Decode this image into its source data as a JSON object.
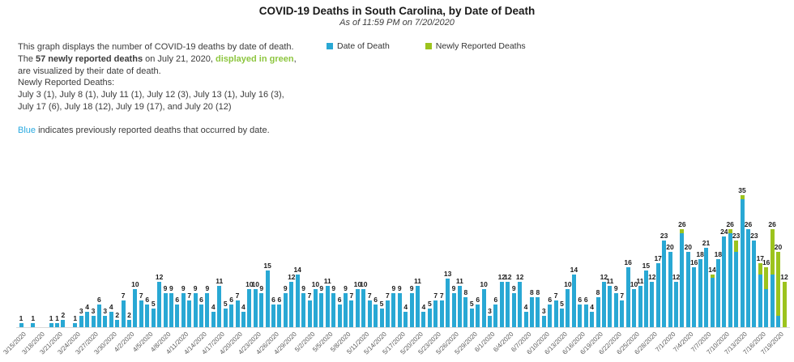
{
  "title": "COVID-19 Deaths in South Carolina, by Date of Death",
  "subtitle": "As of 11:59 PM on 7/20/2020",
  "description": {
    "p1_a": "This graph displays the number of COVID-19 deaths by date of death. The ",
    "p1_b": "57 newly reported deaths",
    "p1_c": " on July 21, 2020, ",
    "p1_d": "displayed in green",
    "p1_e": ", are visualized by their date of death.",
    "line_header": "Newly Reported Deaths:",
    "line_list": "July 3 (1), July 8 (1), July 11 (1), July 12 (3), July 13 (1), July 16 (3), July 17 (6), July 18 (12), July 19 (17), and July 20 (12)",
    "p2_a": "Blue",
    "p2_b": " indicates previously reported deaths that occurred by date."
  },
  "legend": {
    "item1": "Date of Death",
    "item2": "Newly Reported Deaths"
  },
  "colors": {
    "bar_blue": "#29a8d4",
    "bar_green": "#9cc31d",
    "text_green": "#8dc63f",
    "text_blue": "#2aaae1"
  },
  "chart_data": {
    "type": "bar",
    "stacked": true,
    "title": "COVID-19 Deaths in South Carolina, by Date of Death",
    "subtitle": "As of 11:59 PM on 7/20/2020",
    "legend_position": "top",
    "grid": false,
    "ylim": [
      0,
      35
    ],
    "series_names": [
      "Date of Death",
      "Newly Reported Deaths"
    ],
    "dates": [
      "3/15/2020",
      "3/16/2020",
      "3/17/2020",
      "3/18/2020",
      "3/19/2020",
      "3/20/2020",
      "3/21/2020",
      "3/22/2020",
      "3/23/2020",
      "3/24/2020",
      "3/25/2020",
      "3/26/2020",
      "3/27/2020",
      "3/28/2020",
      "3/29/2020",
      "3/30/2020",
      "3/31/2020",
      "4/1/2020",
      "4/2/2020",
      "4/3/2020",
      "4/4/2020",
      "4/5/2020",
      "4/6/2020",
      "4/7/2020",
      "4/8/2020",
      "4/9/2020",
      "4/10/2020",
      "4/11/2020",
      "4/12/2020",
      "4/13/2020",
      "4/14/2020",
      "4/15/2020",
      "4/16/2020",
      "4/17/2020",
      "4/18/2020",
      "4/19/2020",
      "4/20/2020",
      "4/21/2020",
      "4/22/2020",
      "4/23/2020",
      "4/24/2020",
      "4/25/2020",
      "4/26/2020",
      "4/27/2020",
      "4/28/2020",
      "4/29/2020",
      "4/30/2020",
      "5/1/2020",
      "5/2/2020",
      "5/3/2020",
      "5/4/2020",
      "5/5/2020",
      "5/6/2020",
      "5/7/2020",
      "5/8/2020",
      "5/9/2020",
      "5/10/2020",
      "5/11/2020",
      "5/12/2020",
      "5/13/2020",
      "5/14/2020",
      "5/15/2020",
      "5/16/2020",
      "5/17/2020",
      "5/18/2020",
      "5/19/2020",
      "5/20/2020",
      "5/21/2020",
      "5/22/2020",
      "5/23/2020",
      "5/24/2020",
      "5/25/2020",
      "5/26/2020",
      "5/27/2020",
      "5/28/2020",
      "5/29/2020",
      "5/30/2020",
      "5/31/2020",
      "6/1/2020",
      "6/2/2020",
      "6/3/2020",
      "6/4/2020",
      "6/5/2020",
      "6/6/2020",
      "6/7/2020",
      "6/8/2020",
      "6/9/2020",
      "6/10/2020",
      "6/11/2020",
      "6/12/2020",
      "6/13/2020",
      "6/14/2020",
      "6/15/2020",
      "6/16/2020",
      "6/17/2020",
      "6/18/2020",
      "6/19/2020",
      "6/20/2020",
      "6/21/2020",
      "6/22/2020",
      "6/23/2020",
      "6/24/2020",
      "6/25/2020",
      "6/26/2020",
      "6/27/2020",
      "6/28/2020",
      "6/29/2020",
      "6/30/2020",
      "7/1/2020",
      "7/2/2020",
      "7/3/2020",
      "7/4/2020",
      "7/5/2020",
      "7/6/2020",
      "7/7/2020",
      "7/8/2020",
      "7/9/2020",
      "7/10/2020",
      "7/11/2020",
      "7/12/2020",
      "7/13/2020",
      "7/14/2020",
      "7/15/2020",
      "7/16/2020",
      "7/17/2020",
      "7/18/2020",
      "7/19/2020",
      "7/20/2020"
    ],
    "totals": [
      1,
      0,
      1,
      0,
      0,
      1,
      1,
      2,
      0,
      1,
      3,
      4,
      3,
      6,
      3,
      4,
      2,
      7,
      2,
      10,
      7,
      6,
      5,
      12,
      9,
      9,
      6,
      9,
      7,
      9,
      6,
      9,
      4,
      11,
      5,
      6,
      7,
      4,
      10,
      10,
      9,
      15,
      6,
      6,
      9,
      12,
      14,
      9,
      7,
      10,
      9,
      11,
      9,
      6,
      9,
      7,
      10,
      10,
      7,
      6,
      5,
      7,
      9,
      9,
      4,
      9,
      11,
      4,
      5,
      7,
      7,
      13,
      9,
      11,
      8,
      5,
      6,
      10,
      3,
      6,
      12,
      12,
      9,
      12,
      4,
      8,
      8,
      3,
      6,
      7,
      5,
      10,
      14,
      6,
      6,
      4,
      8,
      12,
      11,
      9,
      7,
      16,
      10,
      11,
      15,
      12,
      17,
      23,
      20,
      12,
      26,
      20,
      16,
      18,
      21,
      14,
      18,
      24,
      26,
      23,
      35,
      26,
      23,
      17,
      16,
      26,
      20,
      12
    ],
    "newly_reported": [
      0,
      0,
      0,
      0,
      0,
      0,
      0,
      0,
      0,
      0,
      0,
      0,
      0,
      0,
      0,
      0,
      0,
      0,
      0,
      0,
      0,
      0,
      0,
      0,
      0,
      0,
      0,
      0,
      0,
      0,
      0,
      0,
      0,
      0,
      0,
      0,
      0,
      0,
      0,
      0,
      0,
      0,
      0,
      0,
      0,
      0,
      0,
      0,
      0,
      0,
      0,
      0,
      0,
      0,
      0,
      0,
      0,
      0,
      0,
      0,
      0,
      0,
      0,
      0,
      0,
      0,
      0,
      0,
      0,
      0,
      0,
      0,
      0,
      0,
      0,
      0,
      0,
      0,
      0,
      0,
      0,
      0,
      0,
      0,
      0,
      0,
      0,
      0,
      0,
      0,
      0,
      0,
      0,
      0,
      0,
      0,
      0,
      0,
      0,
      0,
      0,
      0,
      0,
      0,
      0,
      0,
      0,
      0,
      0,
      0,
      1,
      0,
      0,
      0,
      0,
      1,
      0,
      0,
      1,
      3,
      1,
      0,
      0,
      3,
      6,
      12,
      17,
      12
    ],
    "x_tick_labels": [
      "3/15/2020",
      "3/18/2020",
      "3/21/2020",
      "3/24/2020",
      "3/27/2020",
      "3/30/2020",
      "4/2/2020",
      "4/5/2020",
      "4/8/2020",
      "4/11/2020",
      "4/14/2020",
      "4/17/2020",
      "4/20/2020",
      "4/23/2020",
      "4/26/2020",
      "4/29/2020",
      "5/2/2020",
      "5/5/2020",
      "5/8/2020",
      "5/11/2020",
      "5/14/2020",
      "5/17/2020",
      "5/20/2020",
      "5/23/2020",
      "5/26/2020",
      "5/29/2020",
      "6/1/2020",
      "6/4/2020",
      "6/7/2020",
      "6/10/2020",
      "6/13/2020",
      "6/16/2020",
      "6/19/2020",
      "6/22/2020",
      "6/25/2020",
      "6/28/2020",
      "7/1/2020",
      "7/4/2020",
      "7/7/2020",
      "7/10/2020",
      "7/13/2020",
      "7/16/2020",
      "7/19/2020"
    ],
    "x_tick_every": 3
  }
}
